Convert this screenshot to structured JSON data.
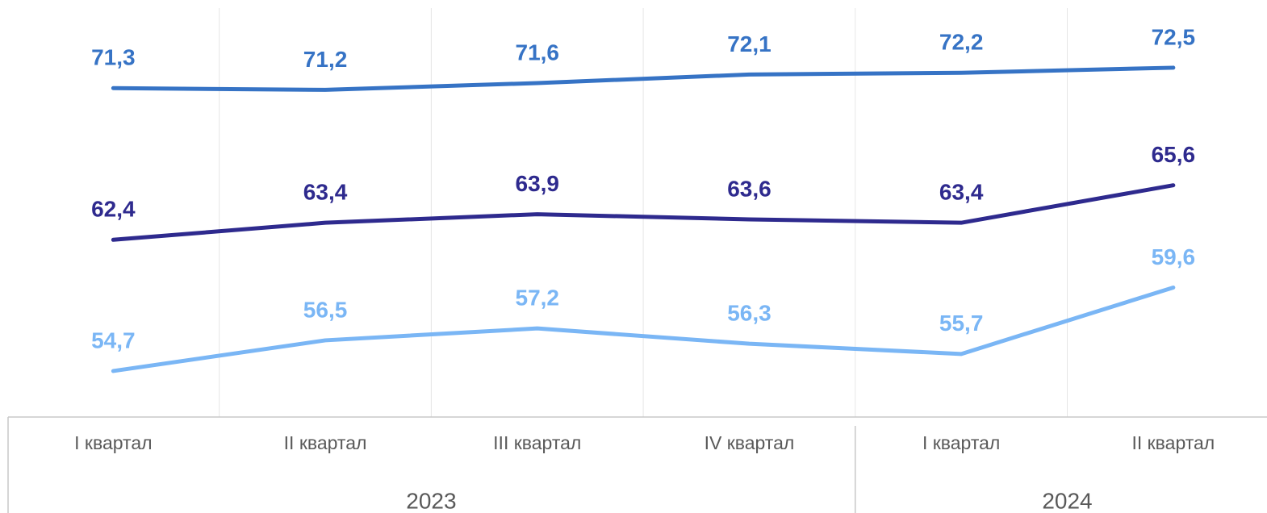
{
  "chart_data": {
    "type": "line",
    "categories": [
      "I квартал",
      "II квартал",
      "III квартал",
      "IV квартал",
      "I квартал",
      "II квартал"
    ],
    "groups": [
      {
        "label": "2023",
        "span": 4
      },
      {
        "label": "2024",
        "span": 2
      }
    ],
    "series": [
      {
        "color": "#3673c5",
        "values": [
          71.3,
          71.2,
          71.6,
          72.1,
          72.2,
          72.5
        ],
        "value_labels": [
          "71,3",
          "71,2",
          "71,6",
          "72,1",
          "72,2",
          "72,5"
        ]
      },
      {
        "color": "#2e2a8e",
        "values": [
          62.4,
          63.4,
          63.9,
          63.6,
          63.4,
          65.6
        ],
        "value_labels": [
          "62,4",
          "63,4",
          "63,9",
          "63,6",
          "63,4",
          "65,6"
        ]
      },
      {
        "color": "#7ab6f5",
        "values": [
          54.7,
          56.5,
          57.2,
          56.3,
          55.7,
          59.6
        ],
        "value_labels": [
          "54,7",
          "56,5",
          "57,2",
          "56,3",
          "55,7",
          "59,6"
        ]
      }
    ],
    "ylim": [
      52,
      76
    ]
  }
}
